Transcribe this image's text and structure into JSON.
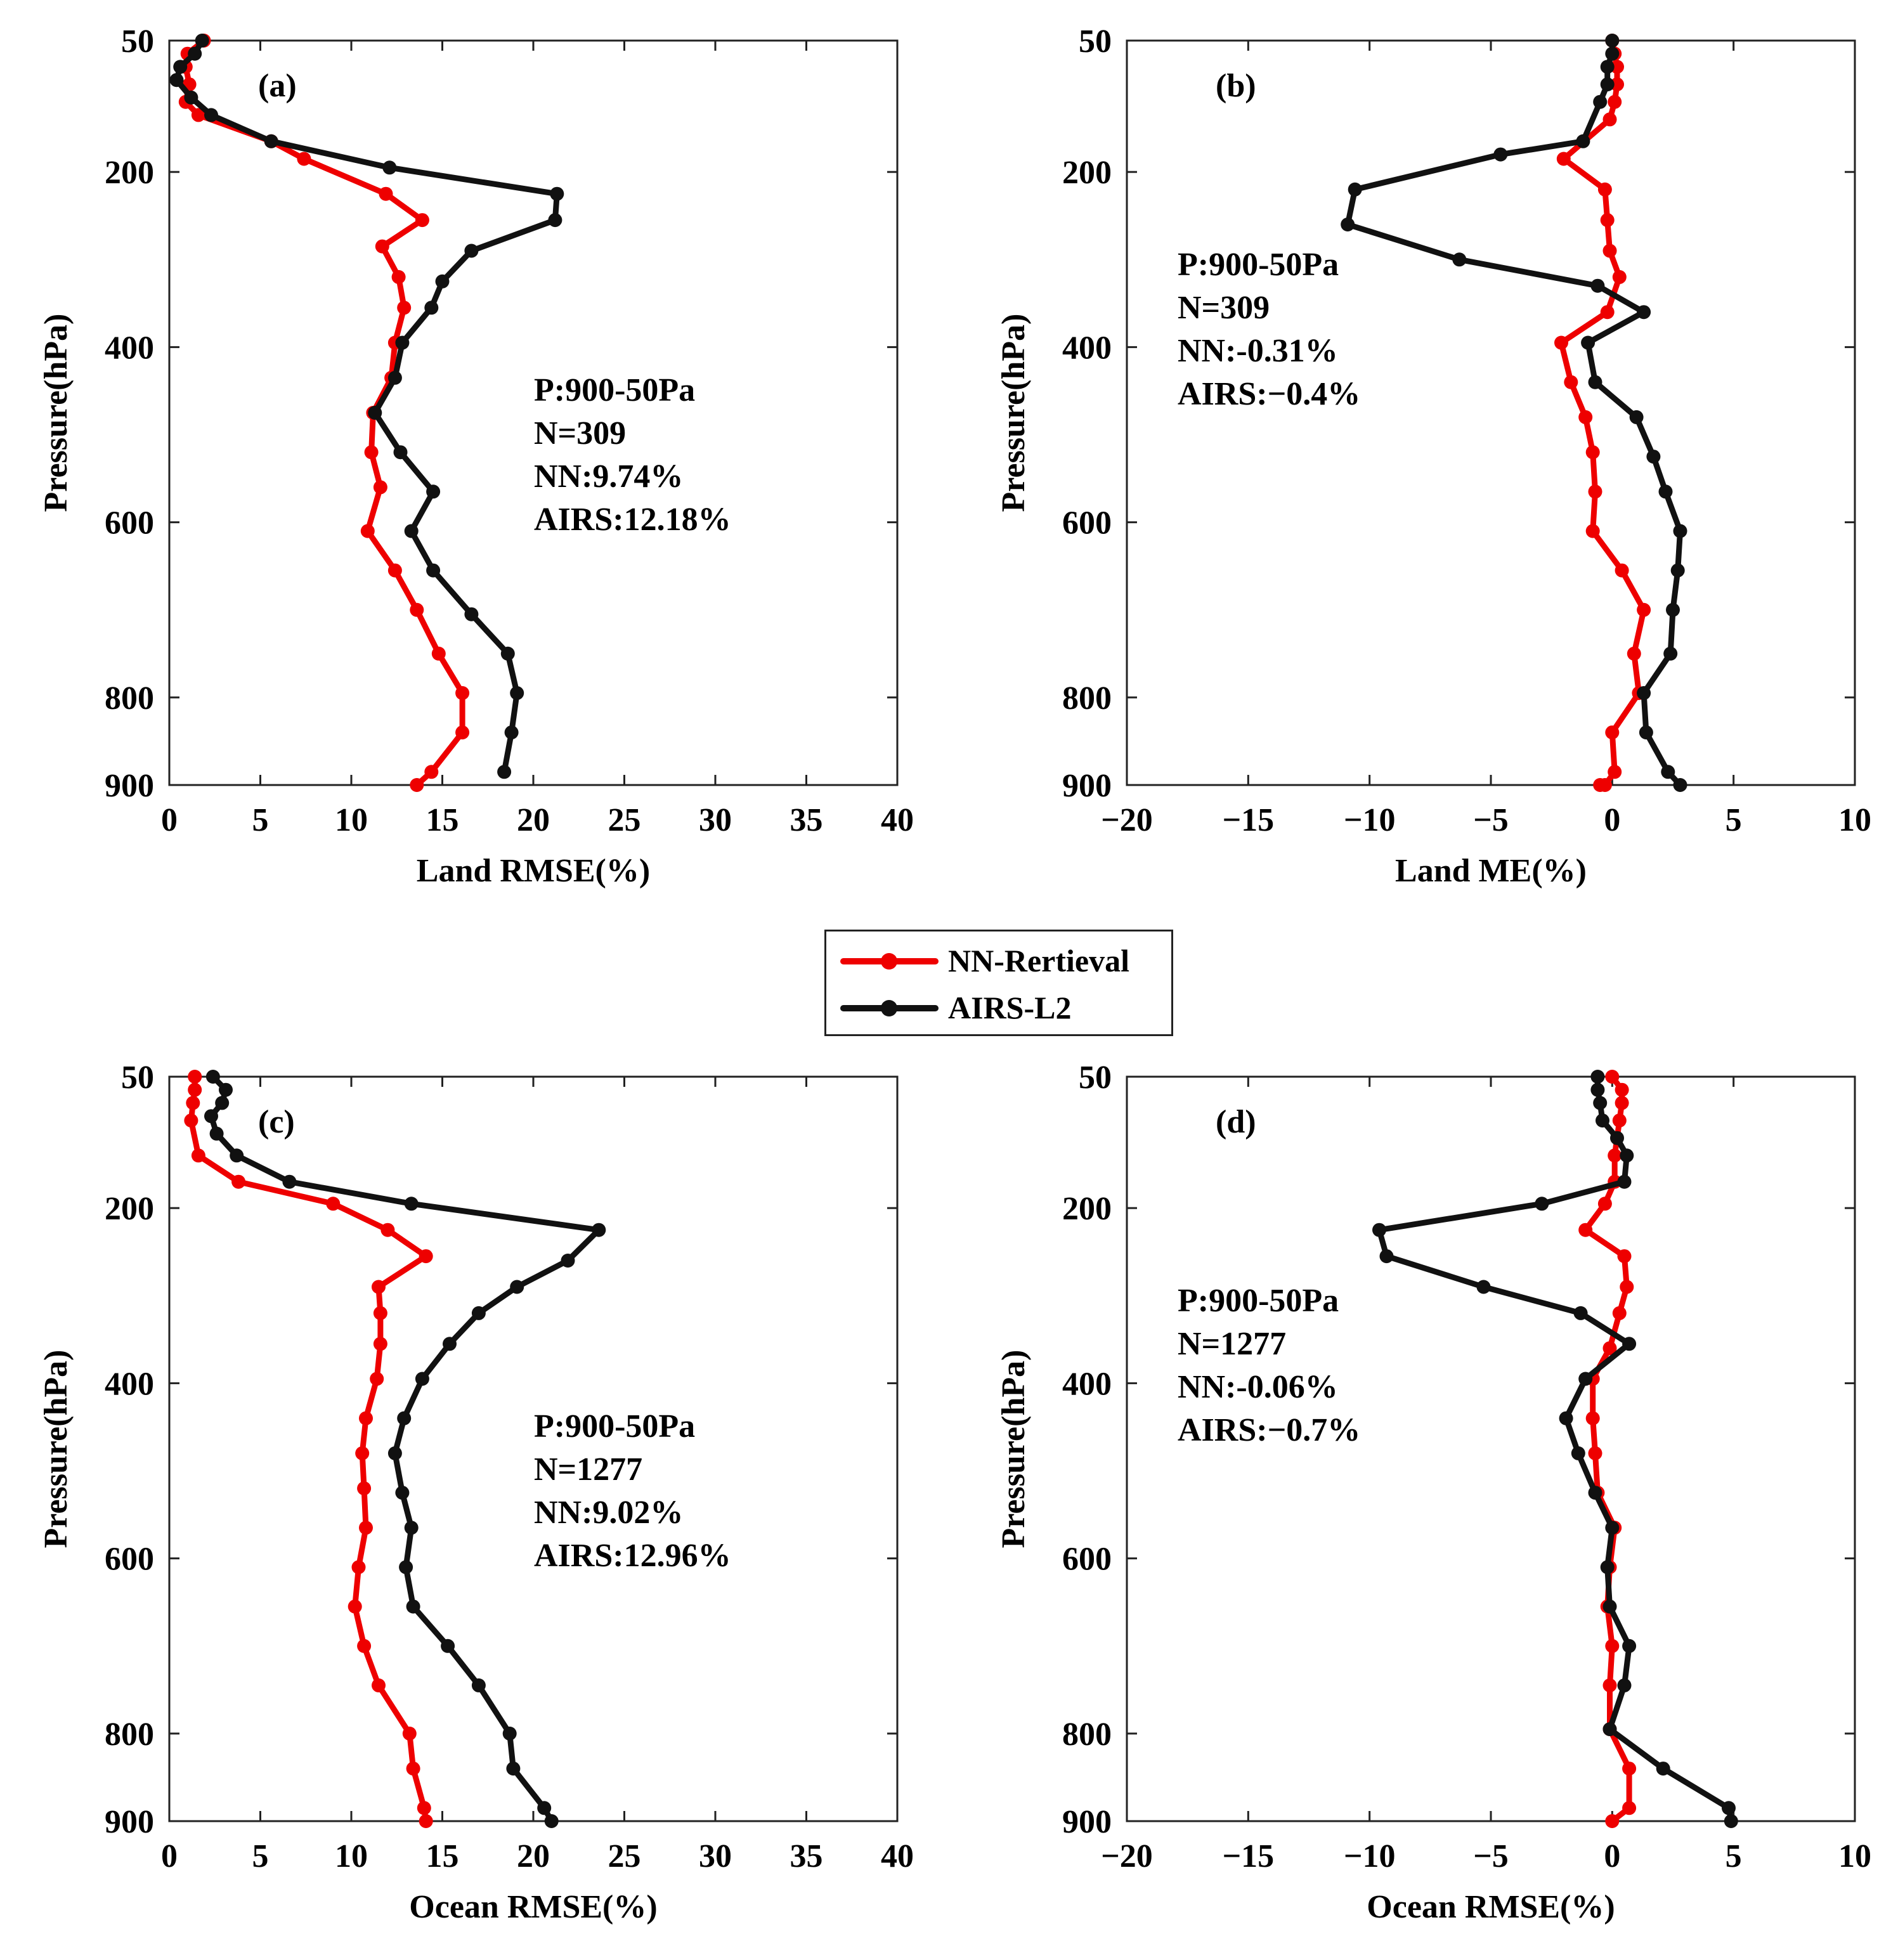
{
  "legend": {
    "nn_label": "NN-Rertieval",
    "airs_label": "AIRS-L2"
  },
  "colors": {
    "nn": "#ee0000",
    "airs": "#111111"
  },
  "chart_data": [
    {
      "type": "line",
      "panel_label": "(a)",
      "xlabel": "Land RMSE(%)",
      "ylabel": "Pressure(hPa)",
      "xlim": [
        0,
        40
      ],
      "xticks": [
        0,
        5,
        10,
        15,
        20,
        25,
        30,
        35,
        40
      ],
      "ylim": [
        50,
        900
      ],
      "yticks": [
        50,
        200,
        400,
        600,
        800,
        900
      ],
      "annotation": [
        "P:900-50Pa",
        "N=309",
        "NN:9.74%",
        "AIRS:12.18%"
      ],
      "series": [
        {
          "name": "NN-Rertieval",
          "x": [
            1.9,
            1.0,
            0.9,
            1.1,
            0.9,
            1.6,
            5.6,
            7.4,
            11.9,
            13.9,
            11.7,
            12.6,
            12.9,
            12.4,
            12.2,
            11.2,
            11.1,
            11.6,
            10.9,
            12.4,
            13.6,
            14.8,
            16.1,
            16.1,
            14.4,
            13.6
          ],
          "y": [
            50,
            65,
            80,
            100,
            120,
            135,
            165,
            185,
            225,
            255,
            285,
            320,
            355,
            395,
            435,
            475,
            520,
            560,
            610,
            655,
            700,
            750,
            795,
            840,
            885,
            900
          ]
        },
        {
          "name": "AIRS-L2",
          "x": [
            1.8,
            1.4,
            0.6,
            0.4,
            1.2,
            2.3,
            5.6,
            12.1,
            21.3,
            21.2,
            16.6,
            15.0,
            14.4,
            12.8,
            12.4,
            11.3,
            12.7,
            14.5,
            13.3,
            14.5,
            16.6,
            18.6,
            19.1,
            18.8,
            18.4
          ],
          "y": [
            50,
            65,
            80,
            95,
            115,
            135,
            165,
            195,
            225,
            255,
            290,
            325,
            355,
            395,
            435,
            475,
            520,
            565,
            610,
            655,
            705,
            750,
            795,
            840,
            885
          ]
        }
      ]
    },
    {
      "type": "line",
      "panel_label": "(b)",
      "xlabel": "Land ME(%)",
      "ylabel": "Pressure(hPa)",
      "xlim": [
        -20,
        10
      ],
      "xticks": [
        -20,
        -15,
        -10,
        -5,
        0,
        5,
        10
      ],
      "xticklabels": [
        "−20",
        "−15",
        "−10",
        "−5",
        "0",
        "5",
        "10"
      ],
      "ylim": [
        50,
        900
      ],
      "yticks": [
        50,
        200,
        400,
        600,
        800,
        900
      ],
      "annotation": [
        "P:900-50Pa",
        "N=309",
        "NN:-0.31%",
        "AIRS:−0.4%"
      ],
      "series": [
        {
          "name": "NN-Rertieval",
          "x": [
            0.0,
            0.1,
            0.2,
            0.2,
            0.1,
            -0.1,
            -2.0,
            -0.3,
            -0.2,
            -0.1,
            0.3,
            -0.2,
            -2.1,
            -1.7,
            -1.1,
            -0.8,
            -0.7,
            -0.8,
            0.4,
            1.3,
            0.9,
            1.1,
            0.0,
            0.1,
            -0.3,
            -0.5
          ],
          "y": [
            50,
            65,
            80,
            100,
            120,
            140,
            185,
            220,
            255,
            290,
            320,
            360,
            395,
            440,
            480,
            520,
            565,
            610,
            655,
            700,
            750,
            795,
            840,
            885,
            900,
            900
          ]
        },
        {
          "name": "AIRS-L2",
          "x": [
            0.0,
            0.0,
            -0.2,
            -0.2,
            -0.5,
            -1.2,
            -4.6,
            -10.6,
            -10.9,
            -6.3,
            -0.6,
            1.3,
            -1.0,
            -0.7,
            1.0,
            1.7,
            2.2,
            2.8,
            2.7,
            2.5,
            2.4,
            1.3,
            1.4,
            2.3,
            2.8
          ],
          "y": [
            50,
            65,
            80,
            100,
            120,
            165,
            180,
            220,
            260,
            300,
            330,
            360,
            395,
            440,
            480,
            525,
            565,
            610,
            655,
            700,
            750,
            795,
            840,
            885,
            900
          ]
        }
      ]
    },
    {
      "type": "line",
      "panel_label": "(c)",
      "xlabel": "Ocean RMSE(%)",
      "ylabel": "Pressure(hPa)",
      "xlim": [
        0,
        40
      ],
      "xticks": [
        0,
        5,
        10,
        15,
        20,
        25,
        30,
        35,
        40
      ],
      "ylim": [
        50,
        900
      ],
      "yticks": [
        50,
        200,
        400,
        600,
        800,
        900
      ],
      "annotation": [
        "P:900-50Pa",
        "N=1277",
        "NN:9.02%",
        "AIRS:12.96%"
      ],
      "series": [
        {
          "name": "NN-Rertieval",
          "x": [
            1.4,
            1.4,
            1.3,
            1.2,
            1.6,
            3.8,
            9.0,
            12.0,
            14.1,
            11.5,
            11.6,
            11.6,
            11.4,
            10.8,
            10.6,
            10.7,
            10.8,
            10.4,
            10.2,
            10.7,
            11.5,
            13.2,
            13.4,
            14.0,
            14.1
          ],
          "y": [
            50,
            65,
            80,
            100,
            140,
            170,
            195,
            225,
            255,
            290,
            320,
            355,
            395,
            440,
            480,
            520,
            565,
            610,
            655,
            700,
            745,
            800,
            840,
            885,
            900
          ]
        },
        {
          "name": "AIRS-L2",
          "x": [
            2.4,
            3.1,
            2.9,
            2.3,
            2.6,
            3.7,
            6.6,
            13.3,
            23.6,
            21.9,
            19.1,
            17.0,
            15.4,
            13.9,
            12.9,
            12.4,
            12.8,
            13.3,
            13.0,
            13.4,
            15.3,
            17.0,
            18.7,
            18.9,
            20.6,
            21.0
          ],
          "y": [
            50,
            65,
            80,
            95,
            115,
            140,
            170,
            195,
            225,
            260,
            290,
            320,
            355,
            395,
            440,
            480,
            525,
            565,
            610,
            655,
            700,
            745,
            800,
            840,
            885,
            900
          ]
        }
      ]
    },
    {
      "type": "line",
      "panel_label": "(d)",
      "xlabel": "Ocean RMSE(%)",
      "ylabel": "Pressure(hPa)",
      "xlim": [
        -20,
        10
      ],
      "xticks": [
        -20,
        -15,
        -10,
        -5,
        0,
        5,
        10
      ],
      "xticklabels": [
        "−20",
        "−15",
        "−10",
        "−5",
        "0",
        "5",
        "10"
      ],
      "ylim": [
        50,
        900
      ],
      "yticks": [
        50,
        200,
        400,
        600,
        800,
        900
      ],
      "annotation": [
        "P:900-50Pa",
        "N=1277",
        "NN:-0.06%",
        "AIRS:−0.7%"
      ],
      "series": [
        {
          "name": "NN-Rertieval",
          "x": [
            0.0,
            0.4,
            0.4,
            0.3,
            0.1,
            0.1,
            -0.3,
            -1.1,
            0.5,
            0.6,
            0.3,
            -0.1,
            -0.8,
            -0.8,
            -0.7,
            -0.6,
            0.1,
            -0.1,
            -0.2,
            0.0,
            -0.1,
            -0.1,
            0.7,
            0.7,
            0.0
          ],
          "y": [
            50,
            65,
            80,
            100,
            140,
            170,
            195,
            225,
            255,
            290,
            320,
            360,
            395,
            440,
            480,
            525,
            565,
            610,
            655,
            700,
            745,
            795,
            840,
            885,
            900
          ]
        },
        {
          "name": "AIRS-L2",
          "x": [
            -0.6,
            -0.6,
            -0.5,
            -0.4,
            0.2,
            0.6,
            0.5,
            -2.9,
            -9.6,
            -9.3,
            -5.3,
            -1.3,
            0.7,
            -1.1,
            -1.9,
            -1.4,
            -0.7,
            0.0,
            -0.2,
            -0.1,
            0.7,
            0.5,
            -0.1,
            2.1,
            4.8,
            4.9
          ],
          "y": [
            50,
            65,
            80,
            100,
            120,
            140,
            170,
            195,
            225,
            255,
            290,
            320,
            355,
            395,
            440,
            480,
            525,
            565,
            610,
            655,
            700,
            745,
            795,
            840,
            885,
            900
          ]
        }
      ]
    }
  ]
}
